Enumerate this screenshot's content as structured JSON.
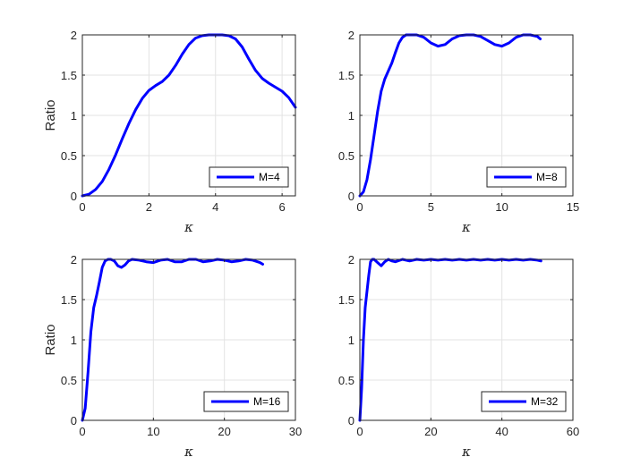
{
  "chart_data": [
    {
      "type": "line",
      "xlabel": "κ",
      "ylabel": "Ratio",
      "xlim": [
        0,
        6.4
      ],
      "ylim": [
        0,
        2
      ],
      "xticks": [
        "0",
        "2",
        "4",
        "6"
      ],
      "yticks": [
        "0",
        "0.5",
        "1",
        "1.5",
        "2"
      ],
      "grid": true,
      "legend_position": "bottom-right",
      "series": [
        {
          "name": "M=4",
          "color": "#0000ff",
          "x": [
            0,
            0.2,
            0.4,
            0.6,
            0.8,
            1.0,
            1.2,
            1.4,
            1.6,
            1.8,
            2.0,
            2.2,
            2.4,
            2.6,
            2.8,
            3.0,
            3.2,
            3.4,
            3.6,
            3.8,
            4.0,
            4.2,
            4.4,
            4.6,
            4.8,
            5.0,
            5.2,
            5.4,
            5.6,
            5.8,
            6.0,
            6.2,
            6.4
          ],
          "y": [
            0,
            0.02,
            0.08,
            0.18,
            0.33,
            0.51,
            0.71,
            0.9,
            1.07,
            1.21,
            1.31,
            1.37,
            1.42,
            1.5,
            1.62,
            1.76,
            1.88,
            1.96,
            1.99,
            2.0,
            2.0,
            2.0,
            1.99,
            1.95,
            1.85,
            1.7,
            1.56,
            1.46,
            1.4,
            1.35,
            1.3,
            1.22,
            1.1
          ]
        }
      ]
    },
    {
      "type": "line",
      "xlabel": "κ",
      "ylabel": "",
      "xlim": [
        0,
        15
      ],
      "ylim": [
        0,
        2
      ],
      "xticks": [
        "0",
        "5",
        "10",
        "15"
      ],
      "yticks": [
        "0",
        "0.5",
        "1",
        "1.5",
        "2"
      ],
      "grid": true,
      "legend_position": "bottom-right",
      "series": [
        {
          "name": "M=8",
          "color": "#0000ff",
          "x": [
            0,
            0.25,
            0.5,
            0.75,
            1.0,
            1.25,
            1.5,
            1.75,
            2.0,
            2.25,
            2.5,
            2.75,
            3.0,
            3.25,
            3.5,
            4.0,
            4.5,
            5.0,
            5.5,
            6.0,
            6.5,
            7.0,
            7.5,
            8.0,
            8.5,
            9.0,
            9.5,
            10.0,
            10.5,
            11.0,
            11.5,
            12.0,
            12.5,
            12.7
          ],
          "y": [
            0,
            0.05,
            0.2,
            0.45,
            0.75,
            1.05,
            1.3,
            1.45,
            1.55,
            1.65,
            1.78,
            1.9,
            1.97,
            2.0,
            2.0,
            2.0,
            1.97,
            1.9,
            1.86,
            1.88,
            1.95,
            1.99,
            2.0,
            2.0,
            1.98,
            1.93,
            1.88,
            1.86,
            1.9,
            1.97,
            2.0,
            2.0,
            1.98,
            1.95
          ]
        }
      ]
    },
    {
      "type": "line",
      "xlabel": "κ",
      "ylabel": "Ratio",
      "xlim": [
        0,
        30
      ],
      "ylim": [
        0,
        2
      ],
      "xticks": [
        "0",
        "10",
        "20",
        "30"
      ],
      "yticks": [
        "0",
        "0.5",
        "1",
        "1.5",
        "2"
      ],
      "grid": true,
      "legend_position": "bottom-right",
      "series": [
        {
          "name": "M=16",
          "color": "#0000ff",
          "x": [
            0,
            0.4,
            0.8,
            1.2,
            1.6,
            2.0,
            2.4,
            2.8,
            3.2,
            3.6,
            4.0,
            4.5,
            5.0,
            5.5,
            6.0,
            6.5,
            7.0,
            8.0,
            9.0,
            10.0,
            11.0,
            12.0,
            13.0,
            14.0,
            15.0,
            16.0,
            17.0,
            18.0,
            19.0,
            20.0,
            21.0,
            22.0,
            23.0,
            24.0,
            25.0,
            25.4
          ],
          "y": [
            0,
            0.15,
            0.6,
            1.1,
            1.4,
            1.55,
            1.72,
            1.9,
            1.98,
            2.0,
            2.0,
            1.98,
            1.92,
            1.9,
            1.93,
            1.98,
            2.0,
            1.99,
            1.97,
            1.96,
            1.99,
            2.0,
            1.97,
            1.97,
            2.0,
            2.0,
            1.97,
            1.98,
            2.0,
            1.99,
            1.97,
            1.98,
            2.0,
            1.99,
            1.96,
            1.94
          ]
        }
      ]
    },
    {
      "type": "line",
      "xlabel": "κ",
      "ylabel": "",
      "xlim": [
        0,
        60
      ],
      "ylim": [
        0,
        2
      ],
      "xticks": [
        "0",
        "20",
        "40",
        "60"
      ],
      "yticks": [
        "0",
        "0.5",
        "1",
        "1.5",
        "2"
      ],
      "grid": true,
      "legend_position": "bottom-right",
      "series": [
        {
          "name": "M=32",
          "color": "#0000ff",
          "x": [
            0,
            0.5,
            1.0,
            1.5,
            2.0,
            2.5,
            3.0,
            3.5,
            4.0,
            5.0,
            6.0,
            7.0,
            8.0,
            9.0,
            10.0,
            12.0,
            14.0,
            16.0,
            18.0,
            20.0,
            22.0,
            24.0,
            26.0,
            28.0,
            30.0,
            32.0,
            34.0,
            36.0,
            38.0,
            40.0,
            42.0,
            44.0,
            46.0,
            48.0,
            50.0,
            51.0
          ],
          "y": [
            0,
            0.4,
            1.0,
            1.4,
            1.6,
            1.8,
            1.97,
            2.0,
            2.0,
            1.96,
            1.92,
            1.97,
            2.0,
            1.98,
            1.97,
            2.0,
            1.98,
            2.0,
            1.99,
            2.0,
            1.99,
            2.0,
            1.99,
            2.0,
            1.99,
            2.0,
            1.99,
            2.0,
            1.99,
            2.0,
            1.99,
            2.0,
            1.99,
            2.0,
            1.99,
            1.98
          ]
        }
      ]
    }
  ]
}
